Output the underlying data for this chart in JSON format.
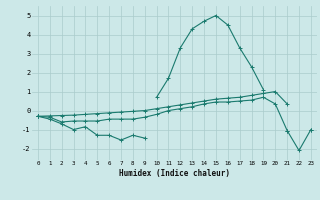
{
  "xlabel": "Humidex (Indice chaleur)",
  "bg_color": "#cce8e8",
  "grid_color": "#aacccc",
  "line_color": "#1a7a6e",
  "x_values": [
    0,
    1,
    2,
    3,
    4,
    5,
    6,
    7,
    8,
    9,
    10,
    11,
    12,
    13,
    14,
    15,
    16,
    17,
    18,
    19,
    20,
    21,
    22,
    23
  ],
  "line1": [
    -0.3,
    -0.45,
    -0.7,
    -1.0,
    -0.85,
    -1.3,
    -1.3,
    -1.55,
    -1.3,
    -1.45,
    null,
    null,
    null,
    null,
    null,
    null,
    null,
    null,
    null,
    null,
    null,
    -1.05,
    null,
    -1.0
  ],
  "line2": [
    -0.3,
    -0.35,
    -0.6,
    -0.55,
    -0.55,
    -0.55,
    -0.45,
    -0.45,
    -0.45,
    -0.35,
    -0.2,
    0.0,
    0.1,
    0.2,
    0.35,
    0.45,
    0.45,
    0.5,
    0.55,
    0.7,
    0.35,
    -1.05,
    -2.1,
    -1.0
  ],
  "line3": [
    -0.3,
    -0.28,
    -0.26,
    -0.24,
    -0.2,
    -0.16,
    -0.12,
    -0.08,
    -0.04,
    0.0,
    0.1,
    0.2,
    0.3,
    0.4,
    0.5,
    0.6,
    0.65,
    0.7,
    0.8,
    0.9,
    1.0,
    0.35,
    null,
    null
  ],
  "line4": [
    -0.3,
    null,
    null,
    null,
    null,
    null,
    null,
    null,
    null,
    null,
    0.7,
    1.7,
    3.3,
    4.3,
    4.7,
    5.0,
    4.5,
    3.3,
    2.3,
    1.1,
    null,
    null,
    null,
    null
  ],
  "xlim": [
    -0.5,
    23.5
  ],
  "ylim": [
    -2.6,
    5.5
  ],
  "yticks": [
    -2,
    -1,
    0,
    1,
    2,
    3,
    4,
    5
  ],
  "xticks": [
    0,
    1,
    2,
    3,
    4,
    5,
    6,
    7,
    8,
    9,
    10,
    11,
    12,
    13,
    14,
    15,
    16,
    17,
    18,
    19,
    20,
    21,
    22,
    23
  ]
}
